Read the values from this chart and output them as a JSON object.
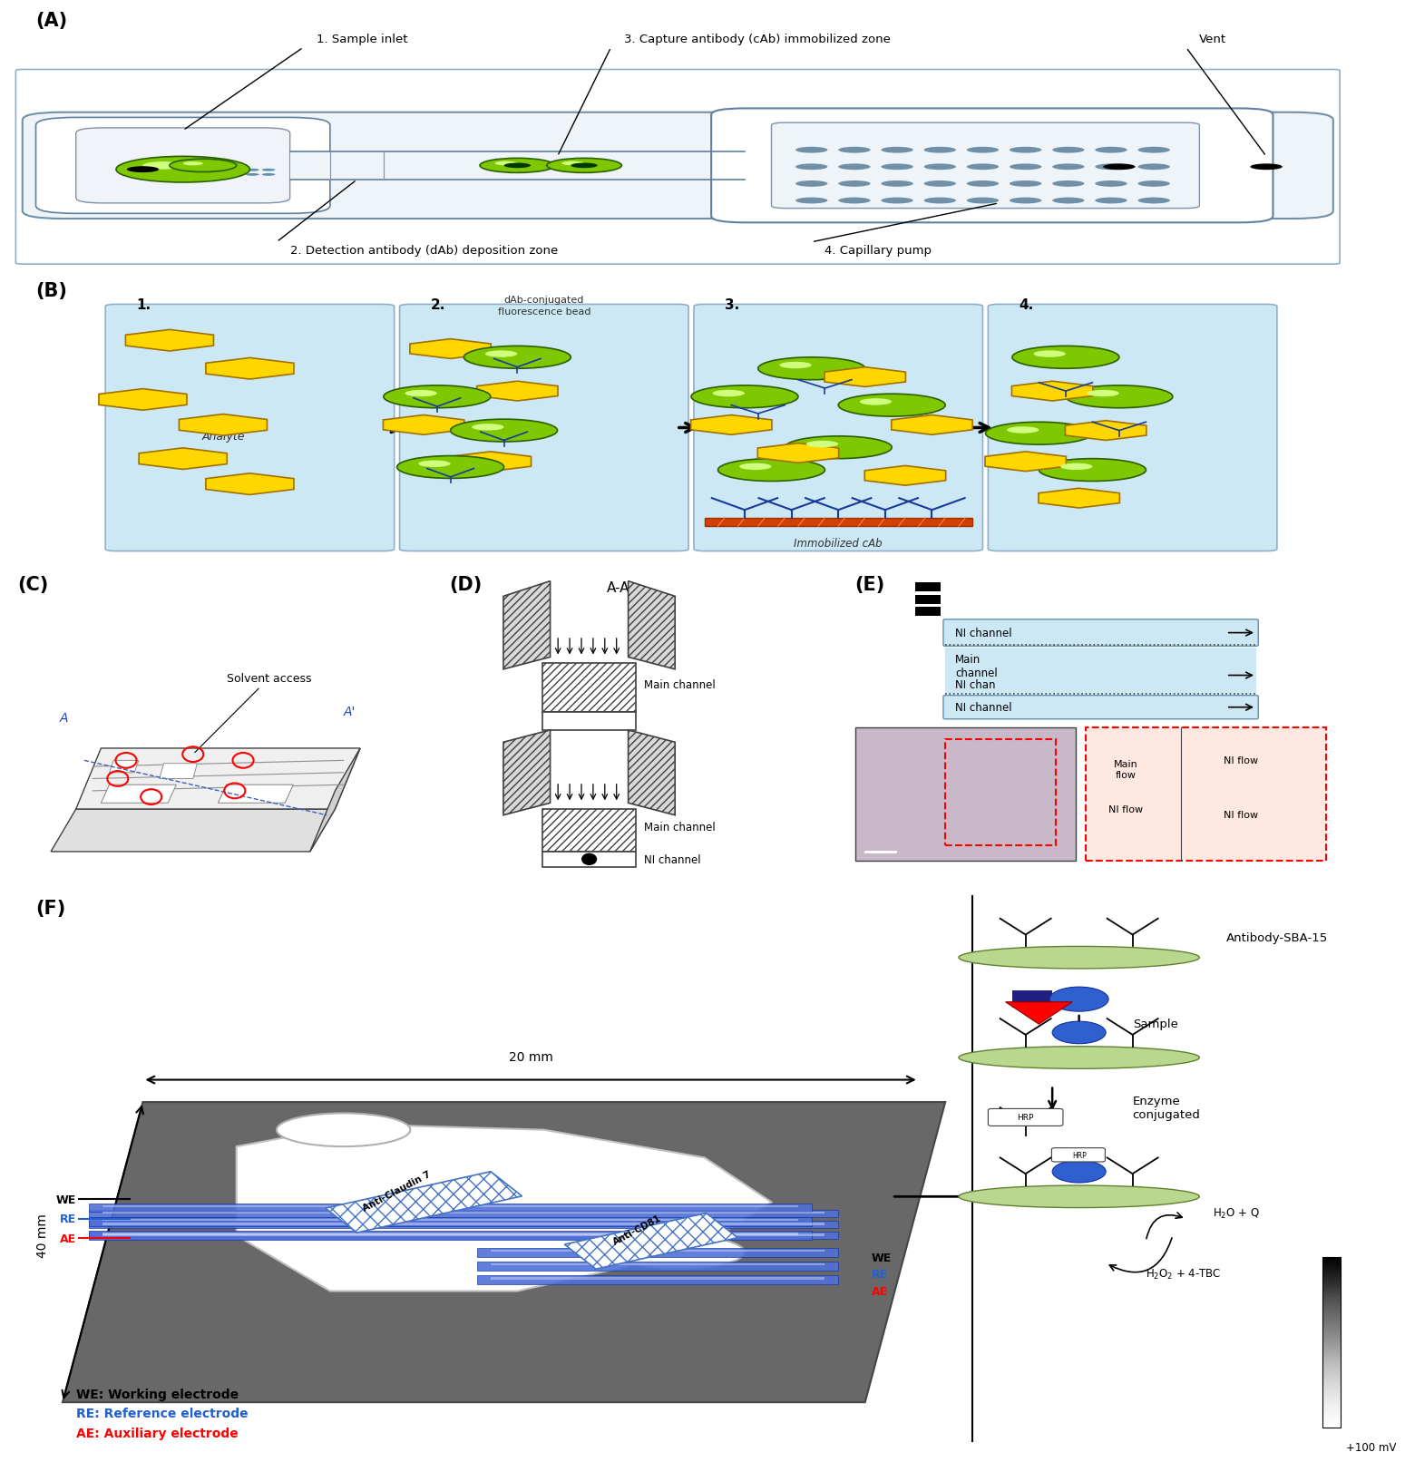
{
  "fig_width": 15.36,
  "fig_height": 16.35,
  "bg_color": "#ffffff",
  "border_color": "#6090b0",
  "label_fontsize": 15,
  "text_fontsize": 10,
  "panel_A_label": "(A)",
  "panel_B_label": "(B)",
  "panel_C_label": "(C)",
  "panel_D_label": "(D)",
  "panel_E_label": "(E)",
  "panel_F_label": "(F)",
  "panelA_labels": [
    "1. Sample inlet",
    "3. Capture antibody (cAb) immobilized zone",
    "Vent",
    "2. Detection antibody (dAb) deposition zone",
    "4. Capillary pump"
  ],
  "panelB_step1_label": "Analyte",
  "panelB_step2_label": "dAb-conjugated\nfluorescence bead",
  "panelB_step4_label": "Immobilized cAb",
  "panelF_dim1": "20 mm",
  "panelF_dim2": "40 mm",
  "panelF_labels": [
    "Anti-Claudin 7",
    "Anti-CD81"
  ],
  "panelF_WE": "WE",
  "panelF_RE": "RE",
  "panelF_AE": "AE",
  "panelF_legend": [
    "WE: Working electrode",
    "RE: Reference electrode",
    "AE: Auxiliary electrode"
  ],
  "panelF_right_labels": [
    "Antibody-SBA-15",
    "Sample",
    "Enzyme\nconjugated"
  ],
  "panelF_voltage": "+100 mV",
  "panelC_labels": [
    "Solvent access",
    "A'",
    "A"
  ],
  "panelD_title": "A-A'",
  "panelD_labels": [
    "Main channel",
    "NI channel"
  ],
  "panelE_labels": [
    "NI channel",
    "Main\nchannel",
    "NI channel",
    "Main\nflow",
    "NI flow"
  ],
  "gray_color": "#808080",
  "chip_gray": "#757575",
  "blue_color": "#4472C4",
  "red_color": "#FF0000",
  "green_color": "#7fc700",
  "dark_green": "#2a6000",
  "yellow_color": "#FFD700",
  "yellow_edge": "#a07000",
  "light_blue": "#cce8f4",
  "dark_gray": "#404040",
  "panel_border": "#90b0c8"
}
